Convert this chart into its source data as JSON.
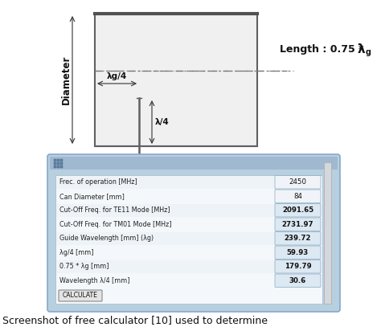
{
  "title_caption": "Screenshot of free calculator [10] used to determine",
  "diameter_label": "Diameter",
  "lambda_g4_label": "λg/4",
  "lambda_4_label": "λ/4",
  "length_text": "Length : 0.75 * λ",
  "length_sub": "g",
  "calc_rows": [
    {
      "label": "Frec. of operation [MHz]",
      "value": "2450",
      "bold": false
    },
    {
      "label": "Can Diameter [mm]",
      "value": "84",
      "bold": false
    },
    {
      "label": "Cut-Off Freq. for TE11 Mode [MHz]",
      "value": "2091.65",
      "bold": true
    },
    {
      "label": "Cut-Off Freq. for TM01 Mode [MHz]",
      "value": "2731.97",
      "bold": true
    },
    {
      "label": "Guide Wavelength [mm] (λg)",
      "value": "239.72",
      "bold": true
    },
    {
      "label": "λg/4 [mm]",
      "value": "59.93",
      "bold": true
    },
    {
      "label": "0.75 * λg [mm]",
      "value": "179.79",
      "bold": true
    },
    {
      "label": "Wavelength λ/4 [mm]",
      "value": "30.6",
      "bold": true
    }
  ],
  "calc_button": "CALCULATE",
  "bg_color": "#ffffff",
  "calc_outer_bg": "#b8cfe0",
  "calc_inner_bg": "#f0f4f8",
  "value_box_bg": "#dce8f2",
  "title_bar_bg": "#a0b8d0"
}
